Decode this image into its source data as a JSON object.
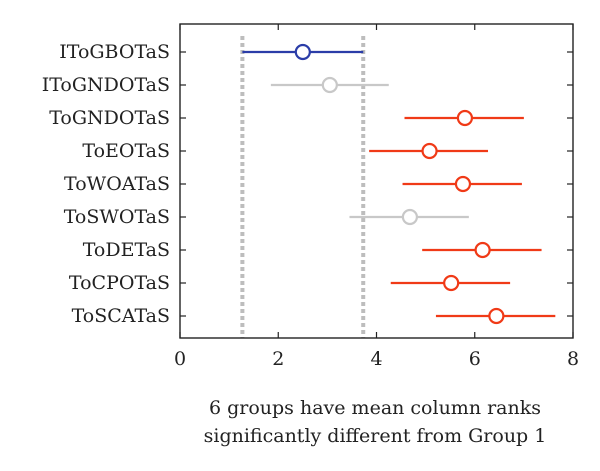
{
  "chart_data": {
    "type": "interval",
    "title": "",
    "xlabel": [
      "6 groups have mean column ranks",
      "significantly different from Group 1"
    ],
    "ylabel": "",
    "xlim": [
      0,
      8
    ],
    "xticks": [
      "0",
      "2",
      "4",
      "6",
      "8"
    ],
    "categories": [
      "IToGBOTaS",
      "IToGNDOTaS",
      "ToGNDOTaS",
      "ToEOTaS",
      "ToWOATaS",
      "ToSWOTaS",
      "ToDETaS",
      "ToCPOTaS",
      "ToSCATaS"
    ],
    "means": [
      2.5,
      3.05,
      5.8,
      5.08,
      5.76,
      4.68,
      6.16,
      5.52,
      6.44
    ],
    "lower": [
      1.27,
      1.85,
      4.57,
      3.85,
      4.53,
      3.45,
      4.93,
      4.29,
      5.21
    ],
    "upper": [
      3.73,
      4.25,
      7.0,
      6.27,
      6.96,
      5.88,
      7.36,
      6.72,
      7.64
    ],
    "group_colors": [
      "#2b3da8",
      "#c8c8c8",
      "#f03a17",
      "#f03a17",
      "#f03a17",
      "#c8c8c8",
      "#f03a17",
      "#f03a17",
      "#f03a17"
    ],
    "reference_lines": [
      1.27,
      3.73
    ],
    "reference_color": "#bdbdbd",
    "grid": false
  }
}
